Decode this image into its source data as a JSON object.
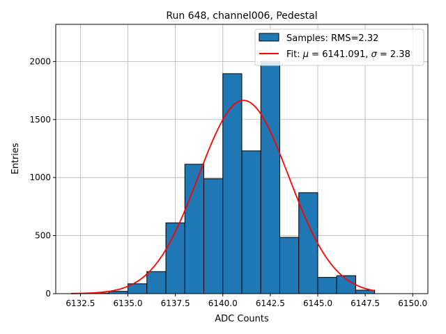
{
  "chart_data": {
    "type": "bar",
    "title": "Run 648, channel006, Pedestal",
    "xlabel": "ADC Counts",
    "ylabel": "Entries",
    "xlim": [
      6131.2,
      6150.8
    ],
    "ylim": [
      0,
      2320
    ],
    "xticks": [
      "6132.5",
      "6135.0",
      "6137.5",
      "6140.0",
      "6142.5",
      "6145.0",
      "6147.5",
      "6150.0"
    ],
    "xtick_values": [
      6132.5,
      6135.0,
      6137.5,
      6140.0,
      6142.5,
      6145.0,
      6147.5,
      6150.0
    ],
    "yticks": [
      "0",
      "500",
      "1000",
      "1500",
      "2000"
    ],
    "ytick_values": [
      0,
      500,
      1000,
      1500,
      2000
    ],
    "grid": true,
    "legend_position": "top-right",
    "series": [
      {
        "name": "Samples: RMS=2.32",
        "kind": "histogram",
        "color": "#1f77b4",
        "edge_color": "#000000",
        "bin_edges": [
          6133.0,
          6134.0,
          6135.0,
          6136.0,
          6137.0,
          6138.0,
          6139.0,
          6140.0,
          6141.0,
          6142.0,
          6143.0,
          6144.0,
          6145.0,
          6146.0,
          6147.0,
          6148.0
        ],
        "values": [
          5,
          20,
          85,
          190,
          610,
          1115,
          990,
          1895,
          1230,
          2000,
          485,
          870,
          140,
          155,
          30
        ]
      },
      {
        "name": "Fit: μ = 6141.091, σ = 2.38",
        "name_parts": [
          "Fit: ",
          "μ",
          " = 6141.091, ",
          "σ",
          " = 2.38"
        ],
        "kind": "gaussian",
        "color": "#ff0000",
        "mu": 6141.091,
        "sigma": 2.38,
        "amplitude": 1665,
        "x_range": [
          6132.0,
          6148.0
        ]
      }
    ]
  }
}
